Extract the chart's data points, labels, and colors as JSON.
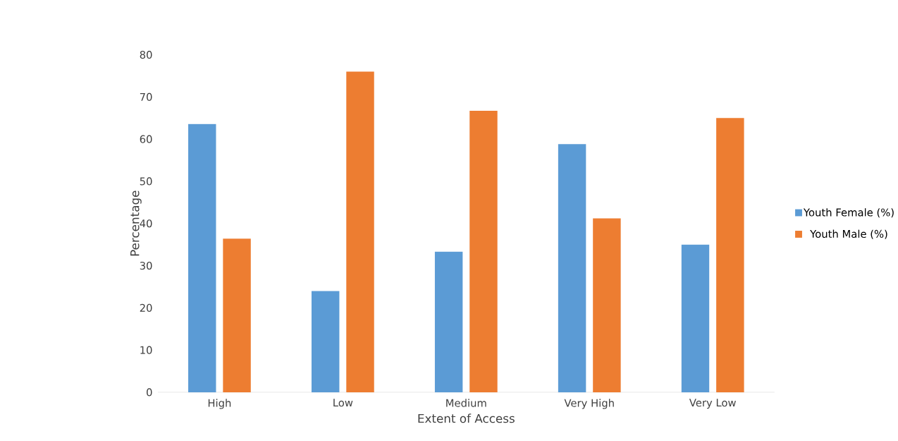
{
  "chart_data": {
    "type": "bar",
    "xlabel": "Extent of Access",
    "ylabel": "Percentage",
    "categories": [
      "High",
      "Low",
      "Medium",
      "Very High",
      "Very Low"
    ],
    "series": [
      {
        "name": "Youth Female (%)",
        "color": "#5b9bd5",
        "values": [
          63.6,
          24,
          33.3,
          58.8,
          35
        ]
      },
      {
        "name": "Youth Male (%)",
        "color": "#ed7d31",
        "values": [
          36.4,
          76,
          66.7,
          41.2,
          65
        ]
      }
    ],
    "ylim": [
      0,
      80
    ],
    "yticks": [
      0,
      10,
      20,
      30,
      40,
      50,
      60,
      70,
      80
    ],
    "legend": "right"
  }
}
